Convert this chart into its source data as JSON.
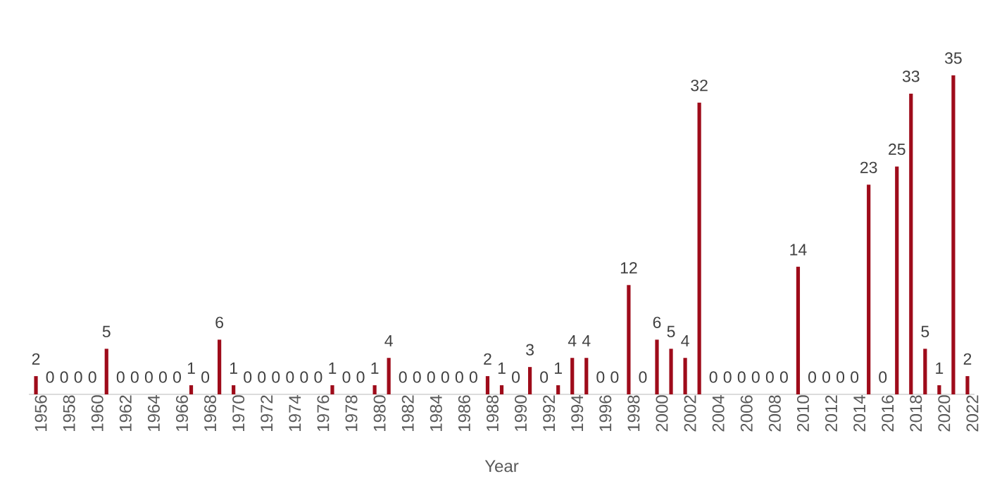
{
  "chart_data": {
    "type": "bar",
    "xlabel": "Year",
    "categories": [
      "1956",
      null,
      "1958",
      null,
      "1960",
      null,
      "1962",
      null,
      "1964",
      null,
      "1966",
      null,
      "1968",
      null,
      "1970",
      null,
      "1972",
      null,
      "1974",
      null,
      "1976",
      null,
      "1978",
      null,
      "1980",
      null,
      "1982",
      null,
      "1984",
      null,
      "1986",
      null,
      "1988",
      null,
      "1990",
      null,
      "1992",
      null,
      "1994",
      null,
      "1996",
      null,
      "1998",
      null,
      "2000",
      null,
      "2002",
      null,
      "2004",
      null,
      "2006",
      null,
      "2008",
      null,
      "2010",
      null,
      "2012",
      null,
      "2014",
      null,
      "2016",
      null,
      "2018",
      null,
      "2020",
      null,
      "2022"
    ],
    "values": [
      2,
      0,
      0,
      0,
      0,
      5,
      0,
      0,
      0,
      0,
      0,
      1,
      0,
      6,
      1,
      0,
      0,
      0,
      0,
      0,
      0,
      1,
      0,
      0,
      1,
      4,
      0,
      0,
      0,
      0,
      0,
      0,
      2,
      1,
      0,
      3,
      0,
      1,
      4,
      4,
      0,
      0,
      12,
      0,
      6,
      5,
      4,
      32,
      0,
      0,
      0,
      0,
      0,
      0,
      14,
      0,
      0,
      0,
      0,
      23,
      0,
      25,
      33,
      5,
      1,
      35,
      2
    ],
    "color": "#9e0b1a",
    "data_labels": true
  }
}
